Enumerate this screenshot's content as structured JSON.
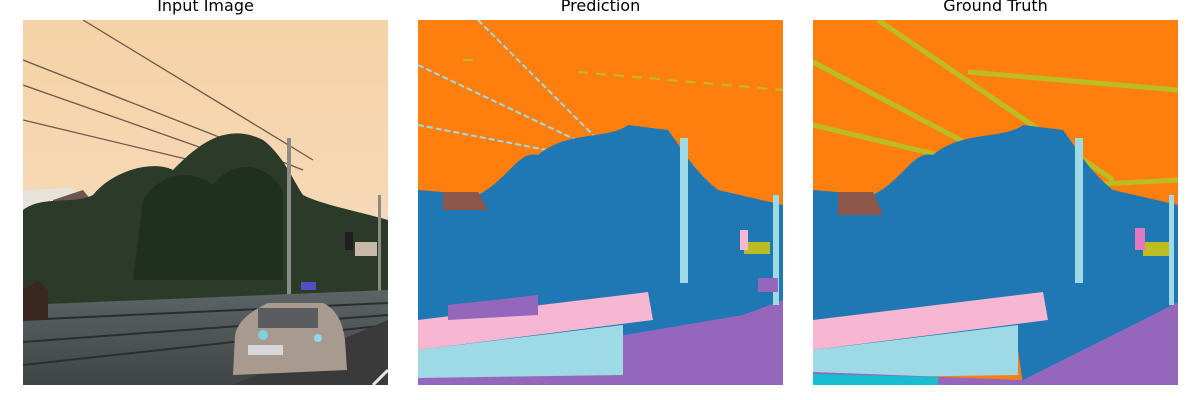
{
  "panels": [
    {
      "title": "Input Image"
    },
    {
      "title": "Prediction"
    },
    {
      "title": "Ground Truth"
    }
  ],
  "colors": {
    "sky": "#ff7f0e",
    "vegetation": "#1f77b4",
    "sidewalk": "#f7b6d2",
    "road": "#9467bd",
    "terrain": "#9edae5",
    "wire": "#bcbd22",
    "building": "#8c564b",
    "sign": "#e377c2",
    "rail": "#17becf"
  }
}
